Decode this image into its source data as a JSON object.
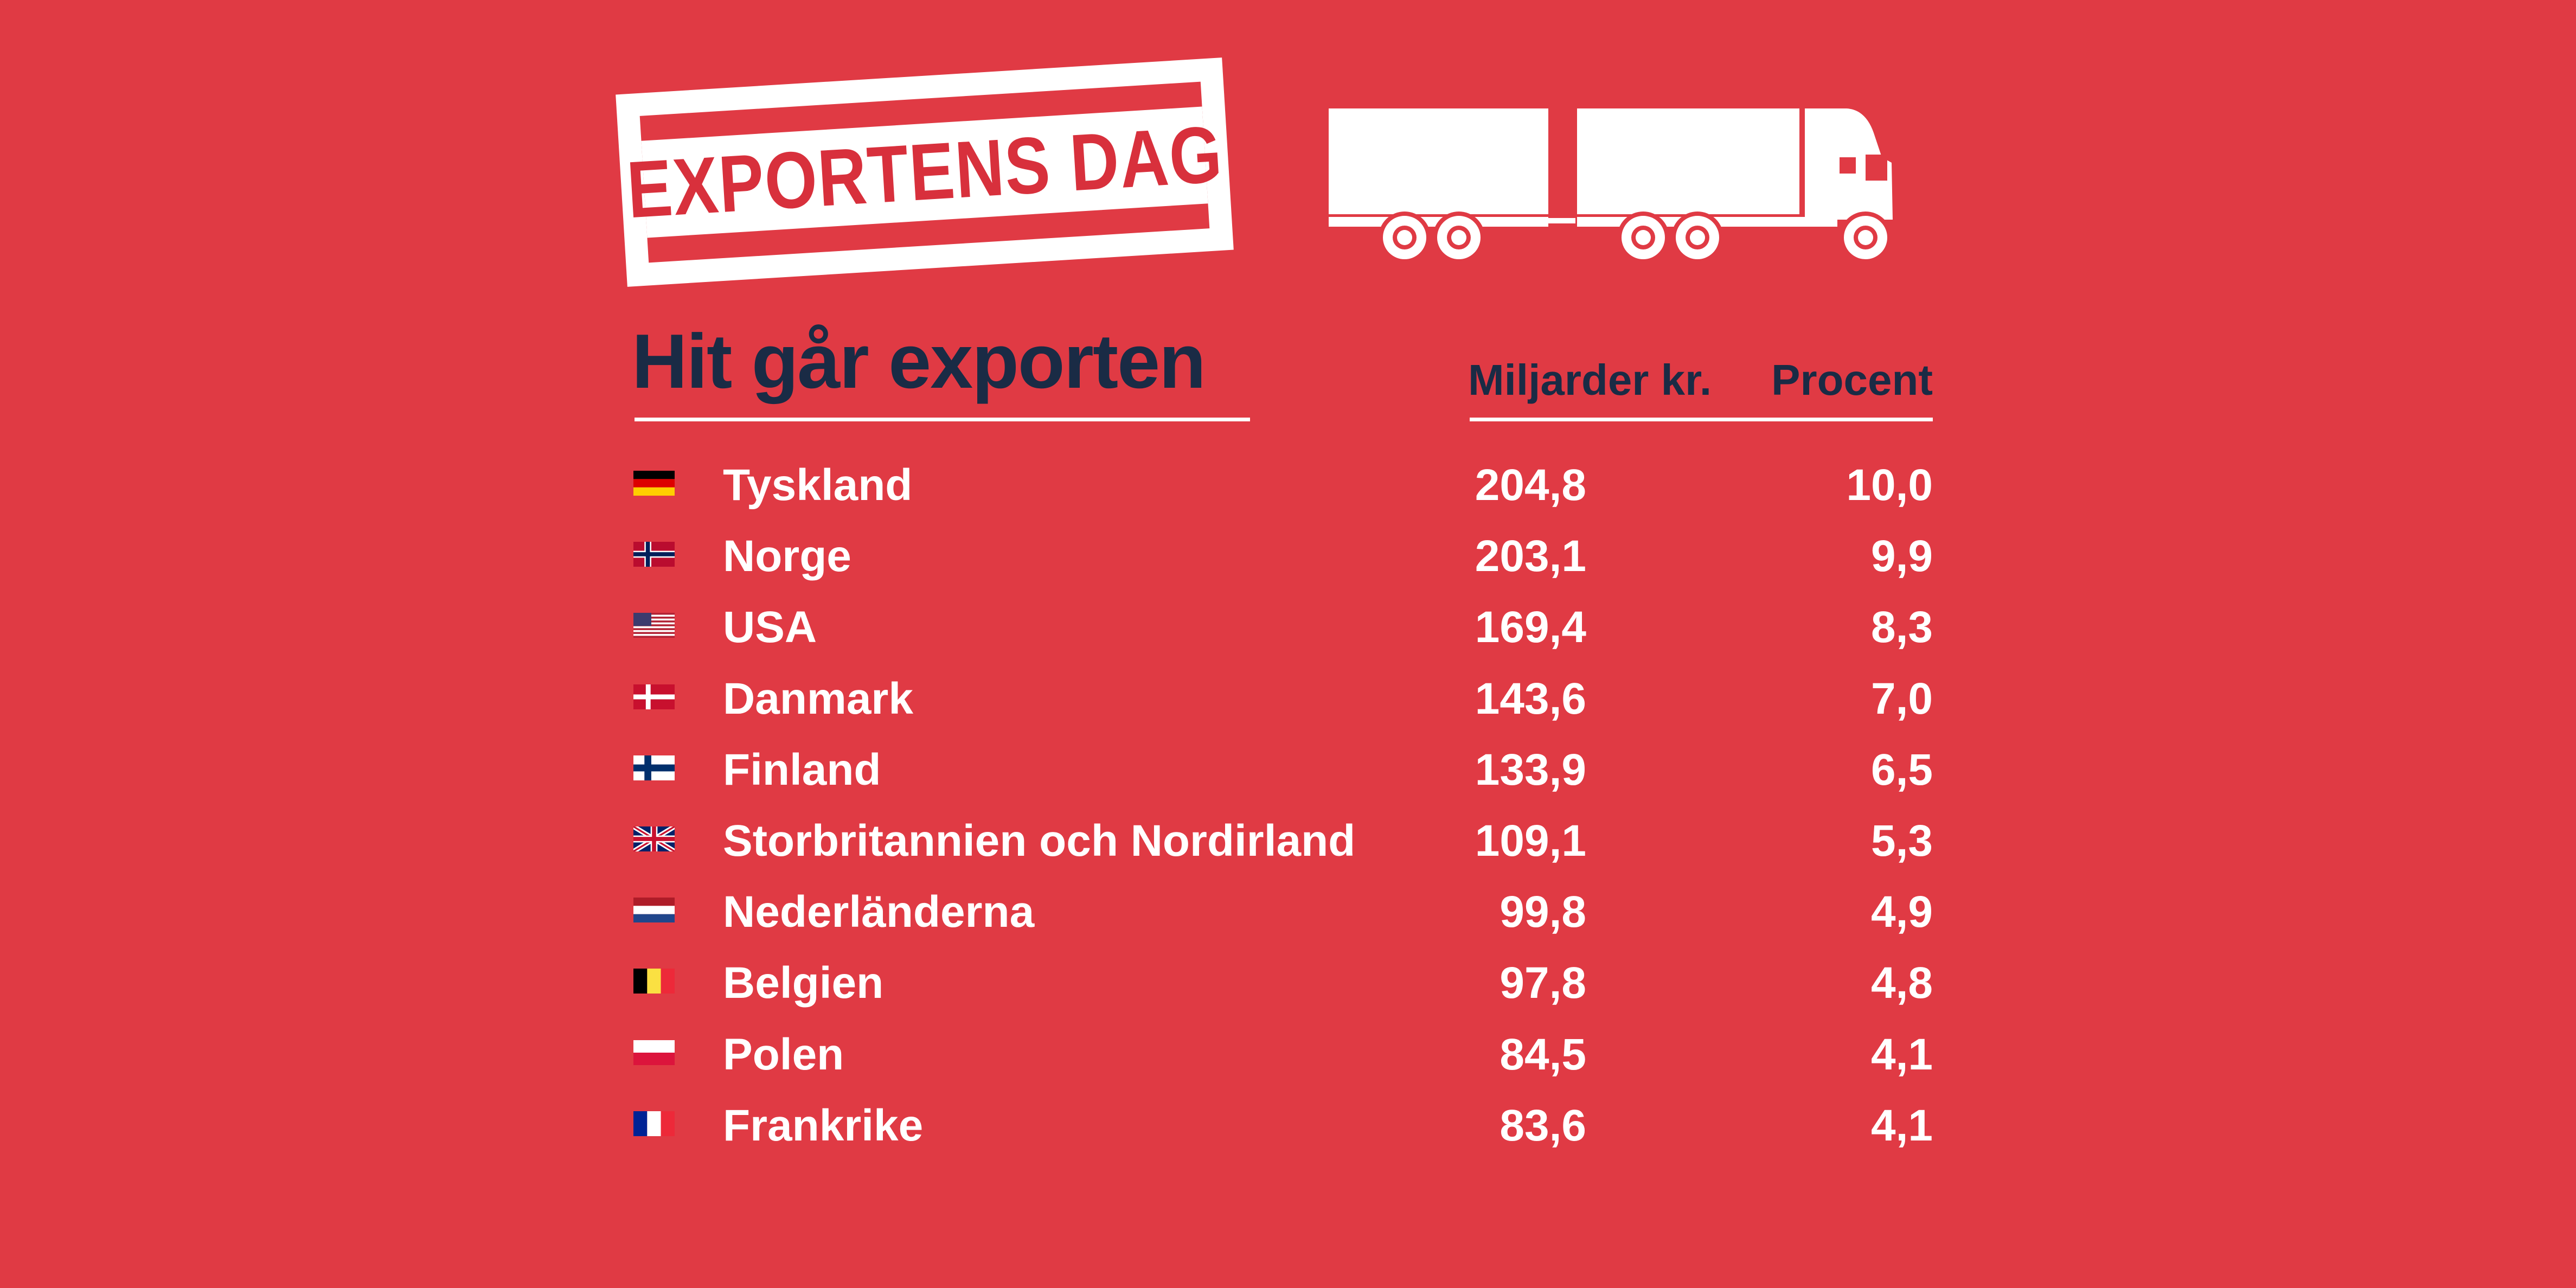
{
  "header": {
    "stamp_text": "EXPORTENS DAG",
    "truck_icon": "truck-icon"
  },
  "chart_data": {
    "type": "table",
    "title": "Hit går exporten",
    "columns": [
      "Miljarder kr.",
      "Procent"
    ],
    "rows": [
      {
        "country": "Tyskland",
        "flag": "germany-flag-icon",
        "value": "204,8",
        "percent": "10,0"
      },
      {
        "country": "Norge",
        "flag": "norway-flag-icon",
        "value": "203,1",
        "percent": "9,9"
      },
      {
        "country": "USA",
        "flag": "usa-flag-icon",
        "value": "169,4",
        "percent": "8,3"
      },
      {
        "country": "Danmark",
        "flag": "denmark-flag-icon",
        "value": "143,6",
        "percent": "7,0"
      },
      {
        "country": "Finland",
        "flag": "finland-flag-icon",
        "value": "133,9",
        "percent": "6,5"
      },
      {
        "country": "Storbritannien och Nordirland",
        "flag": "uk-flag-icon",
        "value": "109,1",
        "percent": "5,3"
      },
      {
        "country": "Nederländerna",
        "flag": "netherlands-flag-icon",
        "value": "99,8",
        "percent": "4,9"
      },
      {
        "country": "Belgien",
        "flag": "belgium-flag-icon",
        "value": "97,8",
        "percent": "4,8"
      },
      {
        "country": "Polen",
        "flag": "poland-flag-icon",
        "value": "84,5",
        "percent": "4,1"
      },
      {
        "country": "Frankrike",
        "flag": "france-flag-icon",
        "value": "83,6",
        "percent": "4,1"
      }
    ]
  },
  "colors": {
    "background": "#e03a44",
    "title": "#1a2b45",
    "text": "#ffffff",
    "stamp_text": "#d8303c"
  }
}
